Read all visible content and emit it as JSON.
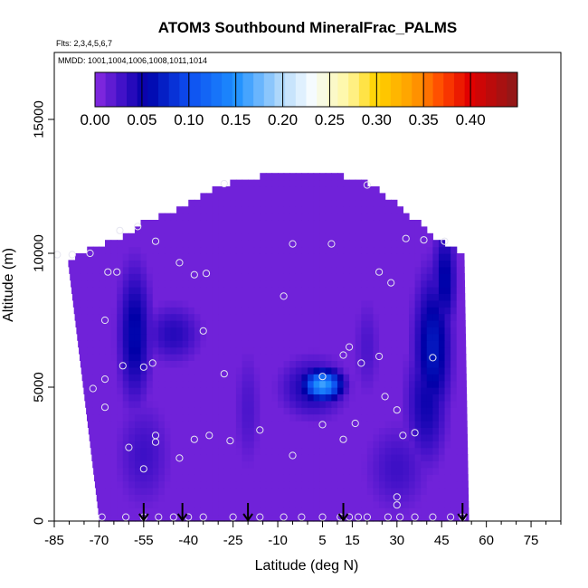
{
  "chart_data": {
    "type": "heatmap",
    "title": "ATOM3 Southbound MineralFrac_PALMS",
    "flights_note": "Flts: 2,3,4,5,6,7",
    "dates_note": "MMDD: 1001,1004,1006,1008,1011,1014",
    "xlabel": "Latitude (deg N)",
    "ylabel": "Altitude (m)",
    "xlim": [
      -85,
      85
    ],
    "ylim": [
      0,
      17500
    ],
    "x_ticks": [
      -85,
      -70,
      -55,
      -40,
      -25,
      -10,
      5,
      15,
      30,
      45,
      60,
      75
    ],
    "y_ticks": [
      0,
      5000,
      10000,
      15000
    ],
    "colorbar": {
      "ticks": [
        0.0,
        0.05,
        0.1,
        0.15,
        0.2,
        0.25,
        0.3,
        0.35,
        0.4
      ],
      "tick_labels": [
        "0.00",
        "0.05",
        "0.10",
        "0.15",
        "0.20",
        "0.25",
        "0.30",
        "0.35",
        "0.40"
      ],
      "range": [
        0.0,
        0.45
      ]
    },
    "background_value": 0.01,
    "field_bounds": {
      "bottom_y": 0,
      "top_y": 12900,
      "west_edge_x_bottom": -70,
      "west_edge_x_top": -84,
      "east_edge_x_bottom": 54,
      "east_edge_x_top": 52
    },
    "features": [
      {
        "type": "blob",
        "x": 5,
        "y": 5100,
        "rx": 8,
        "ry": 700,
        "value": 0.16
      },
      {
        "type": "blob",
        "x": 2,
        "y": 5000,
        "rx": 14,
        "ry": 1400,
        "value": 0.05
      },
      {
        "type": "blob",
        "x": -58,
        "y": 7000,
        "rx": 7,
        "ry": 3200,
        "value": 0.06
      },
      {
        "type": "blob",
        "x": -45,
        "y": 7000,
        "rx": 12,
        "ry": 1400,
        "value": 0.04
      },
      {
        "type": "blob",
        "x": -55,
        "y": 2500,
        "rx": 12,
        "ry": 2600,
        "value": 0.03
      },
      {
        "type": "blob",
        "x": 42,
        "y": 6500,
        "rx": 8,
        "ry": 3500,
        "value": 0.07
      },
      {
        "type": "blob",
        "x": 46,
        "y": 9000,
        "rx": 5,
        "ry": 2500,
        "value": 0.06
      },
      {
        "type": "blob",
        "x": 40,
        "y": 4500,
        "rx": 9,
        "ry": 3000,
        "value": 0.05
      },
      {
        "type": "blob",
        "x": 30,
        "y": 2000,
        "rx": 14,
        "ry": 2200,
        "value": 0.03
      },
      {
        "type": "blob",
        "x": -20,
        "y": 4200,
        "rx": 6,
        "ry": 3000,
        "value": 0.025
      },
      {
        "type": "blob",
        "x": 20,
        "y": 6500,
        "rx": 6,
        "ry": 2500,
        "value": 0.025
      }
    ],
    "sample_points": [
      [
        -84,
        9950
      ],
      [
        -79,
        9950
      ],
      [
        -73,
        10000
      ],
      [
        -67,
        9300
      ],
      [
        -64,
        9300
      ],
      [
        -63,
        10850
      ],
      [
        -57,
        11000
      ],
      [
        -51,
        10450
      ],
      [
        -43,
        9650
      ],
      [
        -38,
        9200
      ],
      [
        -34,
        9250
      ],
      [
        -28,
        12600
      ],
      [
        -8,
        8400
      ],
      [
        -5,
        10350
      ],
      [
        8,
        10350
      ],
      [
        20,
        12550
      ],
      [
        24,
        9300
      ],
      [
        28,
        8900
      ],
      [
        33,
        10550
      ],
      [
        39,
        10500
      ],
      [
        46,
        10450
      ],
      [
        -68,
        7500
      ],
      [
        -72,
        4950
      ],
      [
        -68,
        5300
      ],
      [
        -62,
        5800
      ],
      [
        -55,
        5750
      ],
      [
        -52,
        5900
      ],
      [
        -35,
        7100
      ],
      [
        -28,
        5500
      ],
      [
        -16,
        3400
      ],
      [
        -26,
        3000
      ],
      [
        -33,
        3200
      ],
      [
        -38,
        3050
      ],
      [
        -51,
        3200
      ],
      [
        -51,
        2950
      ],
      [
        -55,
        1950
      ],
      [
        -60,
        2750
      ],
      [
        -68,
        4250
      ],
      [
        -43,
        2350
      ],
      [
        -5,
        2450
      ],
      [
        5,
        5400
      ],
      [
        5,
        3600
      ],
      [
        12,
        6200
      ],
      [
        14,
        6500
      ],
      [
        18,
        5900
      ],
      [
        24,
        6150
      ],
      [
        26,
        4650
      ],
      [
        30,
        4150
      ],
      [
        32,
        3200
      ],
      [
        36,
        3300
      ],
      [
        42,
        6100
      ],
      [
        16,
        3650
      ],
      [
        12,
        3050
      ],
      [
        30,
        900
      ],
      [
        30,
        600
      ],
      [
        -69,
        150
      ],
      [
        -61,
        150
      ],
      [
        -55,
        150
      ],
      [
        -50,
        150
      ],
      [
        -45,
        150
      ],
      [
        -40,
        150
      ],
      [
        -35,
        150
      ],
      [
        -25,
        150
      ],
      [
        -16,
        150
      ],
      [
        -8,
        150
      ],
      [
        -2,
        150
      ],
      [
        5,
        150
      ],
      [
        11,
        150
      ],
      [
        14,
        150
      ],
      [
        17,
        150
      ],
      [
        20,
        150
      ],
      [
        27,
        150
      ],
      [
        31,
        150
      ],
      [
        36,
        150
      ],
      [
        42,
        150
      ],
      [
        48,
        150
      ],
      [
        52,
        150
      ]
    ],
    "profile_arrows": [
      -55,
      -42,
      -20,
      12,
      52
    ]
  }
}
